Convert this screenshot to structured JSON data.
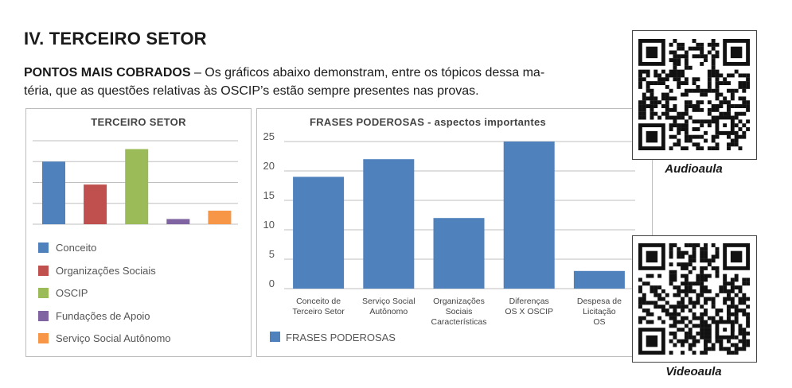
{
  "heading": "IV. TERCEIRO SETOR",
  "intro": {
    "lead": "PONTOS MAIS COBRADOS",
    "line1": " – Os gráficos abaixo demonstram, entre os tópicos dessa ma-",
    "line2": "téria, que as questões relativas às OSCIP’s estão sempre presentes nas provas."
  },
  "chart_data": [
    {
      "type": "bar",
      "title": "TERCEIRO SETOR",
      "categories": [
        "Conceito",
        "Organizações Sociais",
        "OSCIP",
        "Fundações de Apoio",
        "Serviço Social Autônomo"
      ],
      "values": [
        30,
        19,
        36,
        2.5,
        6.5
      ],
      "colors": [
        "#4f81bd",
        "#c0504d",
        "#9bbb59",
        "#8064a2",
        "#f79646"
      ],
      "ylim": [
        0,
        40
      ],
      "grid": true,
      "legend": "bottom"
    },
    {
      "type": "bar",
      "title": "FRASES PODEROSAS - aspectos importantes",
      "categories": [
        [
          "Conceito de",
          "Terceiro Setor"
        ],
        [
          "Serviço Social",
          "Autônomo"
        ],
        [
          "Organizações",
          "Sociais",
          "Características"
        ],
        [
          "Diferenças",
          "OS X OSCIP"
        ],
        [
          "Despesa de",
          "Licitação",
          "OS"
        ]
      ],
      "series": [
        {
          "name": "FRASES PODEROSAS",
          "values": [
            19,
            22,
            12,
            25,
            3
          ],
          "color": "#4f81bd"
        }
      ],
      "yticks": [
        "0",
        "5",
        "10",
        "15",
        "20",
        "25"
      ],
      "ylim": [
        0,
        25
      ],
      "grid": true,
      "legend": "bottom-left"
    }
  ],
  "qr": {
    "audio_label": "Audioaula",
    "video_label": "Videoaula"
  }
}
